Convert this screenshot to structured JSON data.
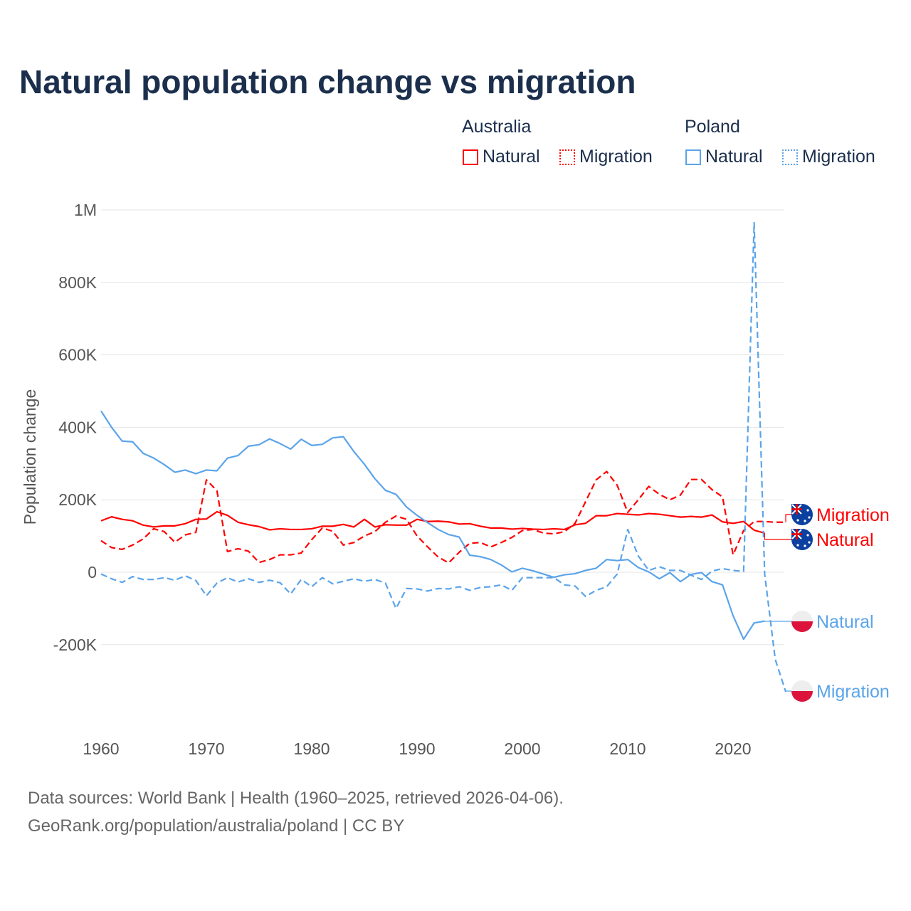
{
  "title": "Natural population change vs migration",
  "legend": {
    "groups": [
      {
        "label": "Australia",
        "items": [
          {
            "label": "Natural",
            "style": "solid"
          },
          {
            "label": "Migration",
            "style": "dotted"
          }
        ],
        "color": "#ff0000"
      },
      {
        "label": "Poland",
        "items": [
          {
            "label": "Natural",
            "style": "solid"
          },
          {
            "label": "Migration",
            "style": "dotted"
          }
        ],
        "color": "#5ba4ea"
      }
    ]
  },
  "footer": {
    "line1": "Data sources: World Bank | Health (1960–2025, retrieved 2026-04-06).",
    "line2": "GeoRank.org/population/australia/poland | CC BY"
  },
  "chart_data": {
    "type": "line",
    "title": "Natural population change vs migration",
    "xlabel": "",
    "ylabel": "Population change",
    "xlim": [
      1960,
      2025
    ],
    "ylim": [
      -420000,
      1000000
    ],
    "x_ticks": [
      "1960",
      "1970",
      "1980",
      "1990",
      "2000",
      "2010",
      "2020"
    ],
    "y_ticks": [
      {
        "v": 1000000,
        "label": "1M"
      },
      {
        "v": 800000,
        "label": "800K"
      },
      {
        "v": 600000,
        "label": "600K"
      },
      {
        "v": 400000,
        "label": "400K"
      },
      {
        "v": 200000,
        "label": "200K"
      },
      {
        "v": 0,
        "label": "0"
      },
      {
        "v": -200000,
        "label": "-200K"
      }
    ],
    "grid": true,
    "x_start": 1960,
    "series": [
      {
        "name": "Australia Natural",
        "end_label": "Natural",
        "color": "#ff0000",
        "dash": false,
        "flag": "australia",
        "values_k": [
          142,
          153,
          146,
          142,
          130,
          125,
          128,
          128,
          134,
          146,
          147,
          167,
          157,
          138,
          131,
          126,
          117,
          120,
          118,
          118,
          120,
          127,
          127,
          132,
          125,
          146,
          125,
          131,
          130,
          130,
          146,
          140,
          141,
          139,
          133,
          134,
          127,
          122,
          122,
          119,
          121,
          119,
          118,
          120,
          118,
          131,
          135,
          156,
          156,
          162,
          160,
          158,
          162,
          160,
          156,
          152,
          154,
          152,
          158,
          139,
          135,
          140,
          116,
          108
        ]
      },
      {
        "name": "Australia Migration",
        "end_label": "Migration",
        "color": "#ff0000",
        "dash": true,
        "flag": "australia",
        "values_k": [
          87,
          68,
          63,
          75,
          92,
          120,
          112,
          83,
          103,
          110,
          255,
          225,
          57,
          65,
          58,
          27,
          35,
          48,
          48,
          53,
          90,
          122,
          113,
          75,
          82,
          100,
          112,
          138,
          155,
          146,
          100,
          70,
          42,
          26,
          55,
          80,
          82,
          70,
          82,
          96,
          115,
          118,
          108,
          106,
          112,
          135,
          195,
          255,
          278,
          240,
          165,
          200,
          237,
          215,
          200,
          213,
          256,
          256,
          228,
          208,
          48,
          115,
          140,
          140,
          138,
          138
        ]
      },
      {
        "name": "Poland Natural",
        "end_label": "Natural",
        "color": "#5ba4ea",
        "dash": false,
        "flag": "poland",
        "values_k": [
          445,
          400,
          362,
          360,
          328,
          315,
          297,
          276,
          282,
          272,
          282,
          280,
          315,
          322,
          348,
          352,
          368,
          355,
          340,
          367,
          350,
          353,
          371,
          374,
          333,
          298,
          258,
          226,
          215,
          180,
          157,
          137,
          118,
          104,
          97,
          47,
          43,
          35,
          20,
          1,
          11,
          4,
          -5,
          -14,
          -7,
          -4,
          5,
          11,
          35,
          32,
          35,
          13,
          1,
          -18,
          -1,
          -26,
          -6,
          -1,
          -26,
          -35,
          -120,
          -185,
          -140,
          -135
        ]
      },
      {
        "name": "Poland Migration",
        "end_label": "Migration",
        "color": "#5ba4ea",
        "dash": true,
        "flag": "poland",
        "values_k": [
          -5,
          -18,
          -28,
          -12,
          -20,
          -20,
          -15,
          -22,
          -10,
          -23,
          -65,
          -30,
          -15,
          -27,
          -18,
          -28,
          -22,
          -29,
          -60,
          -20,
          -40,
          -15,
          -32,
          -25,
          -18,
          -25,
          -20,
          -30,
          -100,
          -45,
          -46,
          -52,
          -45,
          -46,
          -40,
          -50,
          -42,
          -40,
          -35,
          -50,
          -15,
          -15,
          -15,
          -15,
          -35,
          -38,
          -67,
          -50,
          -40,
          -5,
          118,
          45,
          5,
          15,
          5,
          5,
          -8,
          -20,
          3,
          10,
          5,
          2,
          965,
          -5,
          -240,
          -330
        ]
      }
    ],
    "legend_placement": "top-right"
  }
}
